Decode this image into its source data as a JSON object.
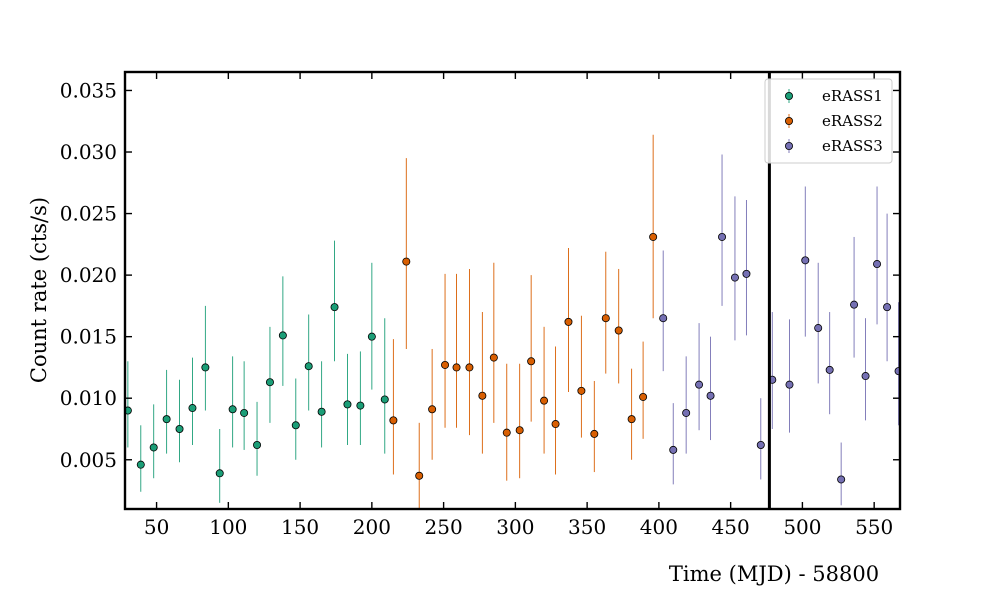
{
  "chart_data": {
    "type": "scatter",
    "xlabel": "Time (MJD) - 58800",
    "ylabel": "Count rate (cts/s)",
    "xlim": [
      28,
      568
    ],
    "ylim": [
      0.001,
      0.0365
    ],
    "x_ticks": [
      50,
      100,
      150,
      200,
      250,
      300,
      350,
      400,
      450,
      500,
      550
    ],
    "y_ticks": [
      0.005,
      0.01,
      0.015,
      0.02,
      0.025,
      0.03,
      0.035
    ],
    "y_tick_labels": [
      "0.005",
      "0.010",
      "0.015",
      "0.020",
      "0.025",
      "0.030",
      "0.035"
    ],
    "vline_x": 477,
    "legend_position": "top-right",
    "series": [
      {
        "name": "eRASS1",
        "color": "#1b9e77",
        "points": [
          {
            "x": 30,
            "y": 0.009,
            "lo": 0.006,
            "hi": 0.013
          },
          {
            "x": 39,
            "y": 0.0046,
            "lo": 0.0024,
            "hi": 0.0078
          },
          {
            "x": 48,
            "y": 0.006,
            "lo": 0.0035,
            "hi": 0.0095
          },
          {
            "x": 57,
            "y": 0.0083,
            "lo": 0.0055,
            "hi": 0.0123
          },
          {
            "x": 66,
            "y": 0.0075,
            "lo": 0.0048,
            "hi": 0.0115
          },
          {
            "x": 75,
            "y": 0.0092,
            "lo": 0.0062,
            "hi": 0.0133
          },
          {
            "x": 84,
            "y": 0.0125,
            "lo": 0.009,
            "hi": 0.0175
          },
          {
            "x": 94,
            "y": 0.0039,
            "lo": 0.0015,
            "hi": 0.0075
          },
          {
            "x": 103,
            "y": 0.0091,
            "lo": 0.006,
            "hi": 0.0134
          },
          {
            "x": 111,
            "y": 0.0088,
            "lo": 0.0058,
            "hi": 0.013
          },
          {
            "x": 120,
            "y": 0.0062,
            "lo": 0.0037,
            "hi": 0.0097
          },
          {
            "x": 129,
            "y": 0.0113,
            "lo": 0.008,
            "hi": 0.0158
          },
          {
            "x": 138,
            "y": 0.0151,
            "lo": 0.011,
            "hi": 0.0199
          },
          {
            "x": 147,
            "y": 0.0078,
            "lo": 0.005,
            "hi": 0.0116
          },
          {
            "x": 156,
            "y": 0.0126,
            "lo": 0.009,
            "hi": 0.0168
          },
          {
            "x": 165,
            "y": 0.0089,
            "lo": 0.006,
            "hi": 0.013
          },
          {
            "x": 174,
            "y": 0.0174,
            "lo": 0.013,
            "hi": 0.0228
          },
          {
            "x": 183,
            "y": 0.0095,
            "lo": 0.0062,
            "hi": 0.0136
          },
          {
            "x": 192,
            "y": 0.0094,
            "lo": 0.0062,
            "hi": 0.0138
          },
          {
            "x": 200,
            "y": 0.015,
            "lo": 0.0107,
            "hi": 0.021
          },
          {
            "x": 209,
            "y": 0.0099,
            "lo": 0.0055,
            "hi": 0.0165
          }
        ]
      },
      {
        "name": "eRASS2",
        "color": "#d95f02",
        "points": [
          {
            "x": 215,
            "y": 0.0082,
            "lo": 0.0038,
            "hi": 0.0148
          },
          {
            "x": 224,
            "y": 0.0211,
            "lo": 0.014,
            "hi": 0.0295
          },
          {
            "x": 233,
            "y": 0.0037,
            "lo": 0.001,
            "hi": 0.008
          },
          {
            "x": 242,
            "y": 0.0091,
            "lo": 0.005,
            "hi": 0.014
          },
          {
            "x": 251,
            "y": 0.0127,
            "lo": 0.0076,
            "hi": 0.0201
          },
          {
            "x": 259,
            "y": 0.0125,
            "lo": 0.0076,
            "hi": 0.0201
          },
          {
            "x": 268,
            "y": 0.0125,
            "lo": 0.007,
            "hi": 0.0205
          },
          {
            "x": 277,
            "y": 0.0102,
            "lo": 0.0055,
            "hi": 0.017
          },
          {
            "x": 285,
            "y": 0.0133,
            "lo": 0.008,
            "hi": 0.021
          },
          {
            "x": 294,
            "y": 0.0072,
            "lo": 0.0033,
            "hi": 0.0128
          },
          {
            "x": 303,
            "y": 0.0074,
            "lo": 0.0035,
            "hi": 0.0128
          },
          {
            "x": 311,
            "y": 0.013,
            "lo": 0.0081,
            "hi": 0.02
          },
          {
            "x": 320,
            "y": 0.0098,
            "lo": 0.0055,
            "hi": 0.0158
          },
          {
            "x": 328,
            "y": 0.0079,
            "lo": 0.0038,
            "hi": 0.0142
          },
          {
            "x": 337,
            "y": 0.0162,
            "lo": 0.0105,
            "hi": 0.0222
          },
          {
            "x": 346,
            "y": 0.0106,
            "lo": 0.0068,
            "hi": 0.0167
          },
          {
            "x": 355,
            "y": 0.0071,
            "lo": 0.004,
            "hi": 0.0114
          },
          {
            "x": 363,
            "y": 0.0165,
            "lo": 0.012,
            "hi": 0.0219
          },
          {
            "x": 372,
            "y": 0.0155,
            "lo": 0.0112,
            "hi": 0.0205
          },
          {
            "x": 381,
            "y": 0.0083,
            "lo": 0.005,
            "hi": 0.0124
          },
          {
            "x": 389,
            "y": 0.0101,
            "lo": 0.0067,
            "hi": 0.0146
          },
          {
            "x": 396,
            "y": 0.0231,
            "lo": 0.0165,
            "hi": 0.0314
          }
        ]
      },
      {
        "name": "eRASS3",
        "color": "#7570b3",
        "points": [
          {
            "x": 403,
            "y": 0.0165,
            "lo": 0.0122,
            "hi": 0.022
          },
          {
            "x": 410,
            "y": 0.0058,
            "lo": 0.003,
            "hi": 0.0096
          },
          {
            "x": 419,
            "y": 0.0088,
            "lo": 0.0055,
            "hi": 0.0134
          },
          {
            "x": 428,
            "y": 0.0111,
            "lo": 0.0074,
            "hi": 0.0161
          },
          {
            "x": 436,
            "y": 0.0102,
            "lo": 0.0066,
            "hi": 0.015
          },
          {
            "x": 444,
            "y": 0.0231,
            "lo": 0.0175,
            "hi": 0.0298
          },
          {
            "x": 453,
            "y": 0.0198,
            "lo": 0.0147,
            "hi": 0.0264
          },
          {
            "x": 461,
            "y": 0.0201,
            "lo": 0.0151,
            "hi": 0.0261
          },
          {
            "x": 471,
            "y": 0.0062,
            "lo": 0.0034,
            "hi": 0.01
          },
          {
            "x": 479,
            "y": 0.0115,
            "lo": 0.0075,
            "hi": 0.017
          },
          {
            "x": 491,
            "y": 0.0111,
            "lo": 0.0072,
            "hi": 0.0164
          },
          {
            "x": 502,
            "y": 0.0212,
            "lo": 0.015,
            "hi": 0.0272
          },
          {
            "x": 511,
            "y": 0.0157,
            "lo": 0.0112,
            "hi": 0.021
          },
          {
            "x": 519,
            "y": 0.0123,
            "lo": 0.0087,
            "hi": 0.017
          },
          {
            "x": 527,
            "y": 0.0034,
            "lo": 0.0013,
            "hi": 0.0064
          },
          {
            "x": 536,
            "y": 0.0176,
            "lo": 0.0133,
            "hi": 0.0231
          },
          {
            "x": 544,
            "y": 0.0118,
            "lo": 0.0082,
            "hi": 0.0165
          },
          {
            "x": 552,
            "y": 0.0209,
            "lo": 0.016,
            "hi": 0.0272
          },
          {
            "x": 559,
            "y": 0.0174,
            "lo": 0.013,
            "hi": 0.025
          },
          {
            "x": 567,
            "y": 0.0122,
            "lo": 0.0078,
            "hi": 0.0178
          }
        ]
      }
    ]
  }
}
